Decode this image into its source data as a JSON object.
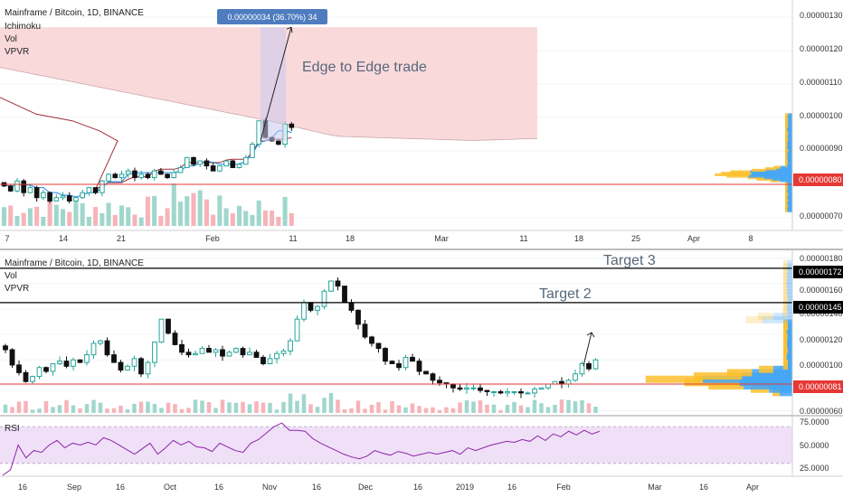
{
  "colors": {
    "up": "#26a69a",
    "down": "#111111",
    "up_fill": "#ffffff",
    "accent_red": "#e53935",
    "cloud": "#f8c9cc",
    "kijun": "#a32a3a",
    "tenkan": "#1e88e5",
    "vol_up": "#8fd0c4",
    "vol_down": "#f4a7ad",
    "vpvr_up": "#42a5f5",
    "vpvr_down": "#fbc02d",
    "rsi_line": "#8e24aa",
    "rsi_band": "#efe0f7",
    "measure_box": "#c9c8ee",
    "measure_label_bg": "#4e7cbf"
  },
  "chart_data": [
    {
      "type": "candlestick",
      "title": "Mainframe / Bitcoin, 1D, BINANCE",
      "indicators": [
        "Ichimoku",
        "Vol",
        "VPVR"
      ],
      "x_axis_labels": [
        "7",
        "14",
        "21",
        "Feb",
        "11",
        "18",
        "Mar",
        "11",
        "18",
        "25",
        "Apr",
        "8"
      ],
      "y_axis": {
        "ticks": [
          "0.00000130",
          "0.00000120",
          "0.00000110",
          "0.00000100",
          "0.00000090",
          "0.00000070"
        ],
        "ylim": [
          6.7e-07,
          1.33e-06
        ],
        "scale": "linear"
      },
      "price_tag": {
        "label": "0.00000080",
        "value": 8e-07
      },
      "horizontal_line": {
        "value": 8e-07
      },
      "measure_label": "0.00000034 (36.70%) 34",
      "measure": {
        "from": 9.3e-07,
        "to": 1.27e-06
      },
      "annotation": "Edge to Edge trade",
      "series": {
        "close": [
          7.95e-07,
          7.8e-07,
          8.1e-07,
          7.75e-07,
          7.9e-07,
          7.6e-07,
          7.75e-07,
          7.5e-07,
          7.6e-07,
          7.65e-07,
          7.5e-07,
          7.6e-07,
          7.75e-07,
          7.9e-07,
          7.75e-07,
          8.1e-07,
          8.3e-07,
          8.2e-07,
          8.3e-07,
          8.4e-07,
          8.2e-07,
          8.3e-07,
          8.2e-07,
          8.4e-07,
          8.3e-07,
          8.2e-07,
          8.35e-07,
          8.5e-07,
          8.8e-07,
          8.6e-07,
          8.7e-07,
          8.55e-07,
          8.4e-07,
          8.55e-07,
          8.7e-07,
          8.5e-07,
          8.6e-07,
          8.8e-07,
          9.2e-07,
          9.9e-07,
          9.4e-07,
          9.3e-07,
          9.2e-07,
          9.8e-07,
          9.7e-07
        ]
      }
    },
    {
      "type": "candlestick",
      "title": "Mainframe / Bitcoin, 1D, BINANCE",
      "indicators": [
        "Vol",
        "VPVR"
      ],
      "x_axis_labels": [
        "16",
        "Sep",
        "16",
        "Oct",
        "16",
        "Nov",
        "16",
        "Dec",
        "16",
        "2019",
        "16",
        "Feb",
        "Mar",
        "16",
        "Apr"
      ],
      "y_axis": {
        "ticks": [
          "0.00000180",
          "0.00000160",
          "0.00000140",
          "0.00000120",
          "0.00000100",
          "0.00000060"
        ],
        "ylim": [
          5.9e-07,
          1.84e-06
        ],
        "scale": "linear"
      },
      "price_tags": [
        {
          "label": "0.00000172",
          "value": 1.72e-06
        },
        {
          "label": "0.00000145",
          "value": 1.45e-06
        },
        {
          "label": "0.00000081",
          "value": 8.1e-07
        }
      ],
      "horizontal_lines": [
        {
          "value": 1.72e-06,
          "color": "black"
        },
        {
          "value": 1.45e-06,
          "color": "black"
        },
        {
          "value": 8.1e-07,
          "color": "red"
        }
      ],
      "annotations": [
        "Target 3",
        "Target 2"
      ],
      "series": {
        "close": [
          1.08e-06,
          9.6e-07,
          9e-07,
          8.3e-07,
          8.7e-07,
          9.4e-07,
          9.1e-07,
          9.7e-07,
          9.9e-07,
          9.5e-07,
          1e-06,
          9.8e-07,
          1.04e-06,
          1.13e-06,
          1.15e-06,
          1.04e-06,
          9.8e-07,
          9.2e-07,
          9.5e-07,
          1.01e-06,
          8.9e-07,
          9.8e-07,
          1.14e-06,
          1.32e-06,
          1.21e-06,
          1.12e-06,
          1.06e-06,
          1.04e-06,
          1.05e-06,
          1.09e-06,
          1.06e-06,
          1.08e-06,
          1.03e-06,
          1.06e-06,
          1.09e-06,
          1.04e-06,
          1.06e-06,
          1.02e-06,
          9.7e-07,
          1.01e-06,
          1.05e-06,
          1.07e-06,
          1.15e-06,
          1.32e-06,
          1.45e-06,
          1.39e-06,
          1.42e-06,
          1.54e-06,
          1.62e-06,
          1.58e-06,
          1.45e-06,
          1.39e-06,
          1.28e-06,
          1.18e-06,
          1.13e-06,
          1.09e-06,
          9.9e-07,
          9.7e-07,
          9.4e-07,
          1.02e-06,
          9.9e-07,
          9.1e-07,
          8.9e-07,
          8.4e-07,
          8.2e-07,
          8.1e-07,
          7.8e-07,
          7.7e-07,
          7.8e-07,
          7.8e-07,
          7.6e-07,
          7.5e-07,
          7.5e-07,
          7.4e-07,
          7.5e-07,
          7.5e-07,
          7.4e-07,
          7.4e-07,
          7.7e-07,
          7.8e-07,
          8.1e-07,
          8.3e-07,
          8.1e-07,
          8.4e-07,
          8.9e-07,
          9.7e-07,
          9.3e-07,
          1e-06
        ]
      }
    },
    {
      "type": "line",
      "title": "RSI",
      "y_axis": {
        "ticks": [
          "75.0000",
          "50.0000",
          "25.0000"
        ],
        "ylim": [
          18,
          80
        ]
      },
      "band": [
        30,
        70
      ],
      "series": {
        "rsi": [
          17,
          23,
          50,
          36,
          44,
          42,
          50,
          55,
          47,
          52,
          50,
          53,
          50,
          58,
          55,
          50,
          45,
          40,
          46,
          52,
          40,
          47,
          55,
          50,
          54,
          48,
          47,
          43,
          52,
          48,
          44,
          42,
          52,
          56,
          63,
          70,
          74,
          66,
          66,
          65,
          57,
          52,
          48,
          44,
          40,
          37,
          35,
          38,
          44,
          41,
          39,
          43,
          41,
          38,
          40,
          42,
          40,
          42,
          44,
          40,
          47,
          44,
          47,
          50,
          52,
          54,
          53,
          56,
          54,
          60,
          55,
          62,
          59,
          65,
          61,
          66,
          62,
          65
        ]
      }
    }
  ]
}
